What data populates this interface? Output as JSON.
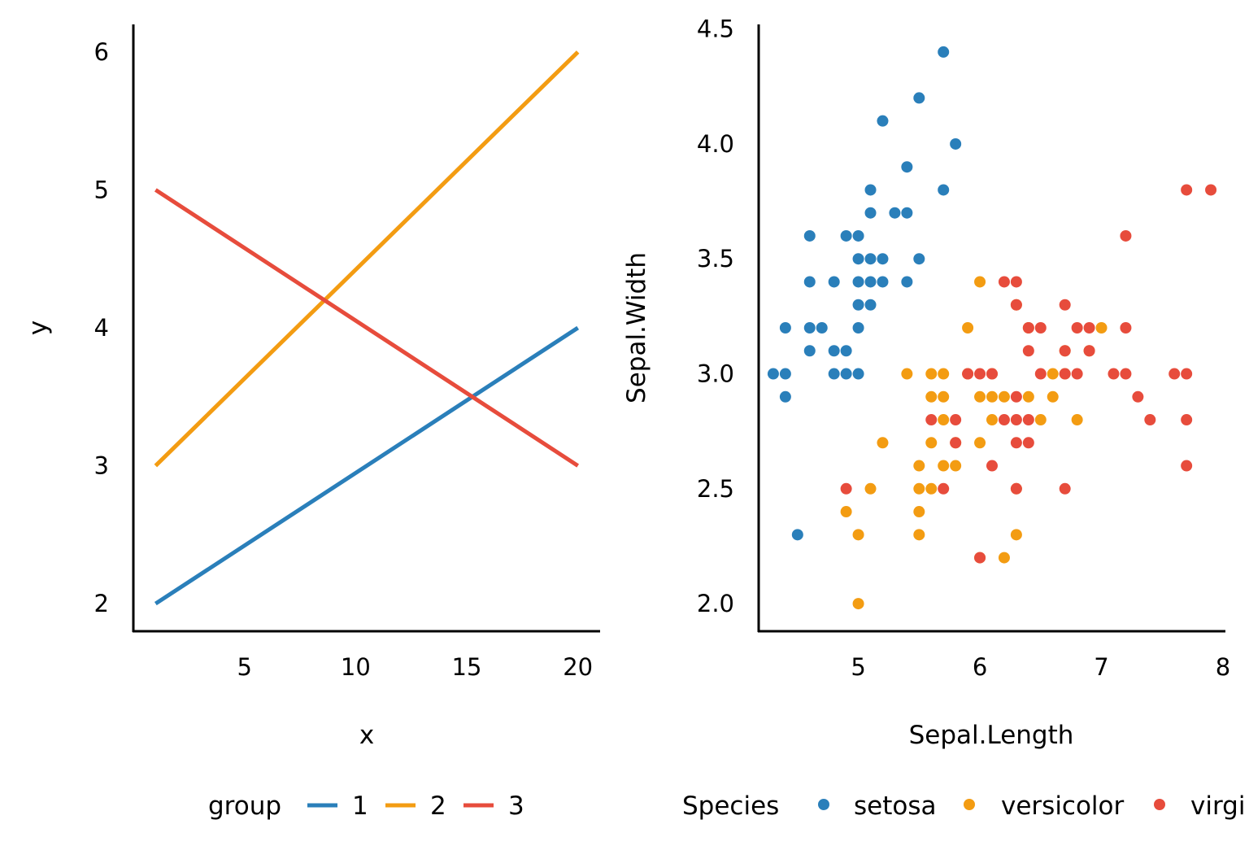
{
  "colors": {
    "blue": "#2a7fba",
    "orange": "#f39c12",
    "red": "#e74c3c",
    "axis": "#000000"
  },
  "chart_data": [
    {
      "type": "line",
      "xlabel": "x",
      "ylabel": "y",
      "xlim": [
        0,
        21
      ],
      "ylim": [
        1.8,
        6.2
      ],
      "xticks": [
        "5",
        "10",
        "15",
        "20"
      ],
      "yticks": [
        "2",
        "3",
        "4",
        "5",
        "6"
      ],
      "grid": false,
      "legend": {
        "title": "group",
        "placement": "bottom",
        "entries": [
          "1",
          "2",
          "3"
        ]
      },
      "series": [
        {
          "name": "1",
          "color": "#2a7fba",
          "x": [
            1,
            20
          ],
          "y": [
            2,
            4
          ]
        },
        {
          "name": "2",
          "color": "#f39c12",
          "x": [
            1,
            20
          ],
          "y": [
            3,
            6
          ]
        },
        {
          "name": "3",
          "color": "#e74c3c",
          "x": [
            1,
            20
          ],
          "y": [
            5,
            3
          ]
        }
      ]
    },
    {
      "type": "scatter",
      "xlabel": "Sepal.Length",
      "ylabel": "Sepal.Width",
      "xlim": [
        4.18,
        8.02
      ],
      "ylim": [
        1.88,
        4.52
      ],
      "xticks": [
        "5",
        "6",
        "7",
        "8"
      ],
      "yticks": [
        "2.0",
        "2.5",
        "3.0",
        "3.5",
        "4.0",
        "4.5"
      ],
      "grid": false,
      "legend": {
        "title": "Species",
        "placement": "bottom",
        "entries": [
          "setosa",
          "versicolor",
          "virgi"
        ]
      },
      "series": [
        {
          "name": "setosa",
          "color": "#2a7fba",
          "points": [
            [
              4.3,
              3.0
            ],
            [
              4.4,
              3.0
            ],
            [
              4.4,
              2.9
            ],
            [
              4.4,
              3.2
            ],
            [
              4.5,
              2.3
            ],
            [
              4.6,
              3.1
            ],
            [
              4.6,
              3.2
            ],
            [
              4.6,
              3.4
            ],
            [
              4.6,
              3.6
            ],
            [
              4.7,
              3.2
            ],
            [
              4.8,
              3.0
            ],
            [
              4.8,
              3.1
            ],
            [
              4.8,
              3.4
            ],
            [
              4.9,
              3.0
            ],
            [
              4.9,
              3.1
            ],
            [
              4.9,
              3.6
            ],
            [
              5.0,
              3.0
            ],
            [
              5.0,
              3.2
            ],
            [
              5.0,
              3.3
            ],
            [
              5.0,
              3.4
            ],
            [
              5.0,
              3.5
            ],
            [
              5.0,
              3.6
            ],
            [
              5.1,
              3.3
            ],
            [
              5.1,
              3.4
            ],
            [
              5.1,
              3.5
            ],
            [
              5.1,
              3.7
            ],
            [
              5.1,
              3.8
            ],
            [
              5.2,
              3.4
            ],
            [
              5.2,
              3.5
            ],
            [
              5.2,
              4.1
            ],
            [
              5.3,
              3.7
            ],
            [
              5.4,
              3.4
            ],
            [
              5.4,
              3.7
            ],
            [
              5.4,
              3.9
            ],
            [
              5.5,
              3.5
            ],
            [
              5.5,
              4.2
            ],
            [
              5.7,
              3.8
            ],
            [
              5.7,
              4.4
            ],
            [
              5.8,
              4.0
            ]
          ]
        },
        {
          "name": "versicolor",
          "color": "#f39c12",
          "points": [
            [
              4.9,
              2.4
            ],
            [
              5.0,
              2.0
            ],
            [
              5.0,
              2.3
            ],
            [
              5.1,
              2.5
            ],
            [
              5.2,
              2.7
            ],
            [
              5.4,
              3.0
            ],
            [
              5.5,
              2.3
            ],
            [
              5.5,
              2.4
            ],
            [
              5.5,
              2.5
            ],
            [
              5.5,
              2.6
            ],
            [
              5.6,
              2.5
            ],
            [
              5.6,
              2.7
            ],
            [
              5.6,
              2.9
            ],
            [
              5.6,
              3.0
            ],
            [
              5.7,
              2.6
            ],
            [
              5.7,
              2.8
            ],
            [
              5.7,
              2.9
            ],
            [
              5.7,
              3.0
            ],
            [
              5.8,
              2.6
            ],
            [
              5.8,
              2.7
            ],
            [
              5.9,
              3.0
            ],
            [
              5.9,
              3.2
            ],
            [
              6.0,
              2.2
            ],
            [
              6.0,
              2.7
            ],
            [
              6.0,
              2.9
            ],
            [
              6.0,
              3.4
            ],
            [
              6.1,
              2.8
            ],
            [
              6.1,
              2.9
            ],
            [
              6.1,
              3.0
            ],
            [
              6.2,
              2.2
            ],
            [
              6.2,
              2.9
            ],
            [
              6.3,
              2.3
            ],
            [
              6.3,
              2.5
            ],
            [
              6.3,
              3.3
            ],
            [
              6.4,
              2.9
            ],
            [
              6.4,
              3.2
            ],
            [
              6.5,
              2.8
            ],
            [
              6.6,
              2.9
            ],
            [
              6.6,
              3.0
            ],
            [
              6.7,
              3.0
            ],
            [
              6.7,
              3.1
            ],
            [
              6.8,
              2.8
            ],
            [
              6.9,
              3.1
            ],
            [
              7.0,
              3.2
            ]
          ]
        },
        {
          "name": "virginica",
          "color": "#e74c3c",
          "points": [
            [
              4.9,
              2.5
            ],
            [
              5.6,
              2.8
            ],
            [
              5.7,
              2.5
            ],
            [
              5.8,
              2.7
            ],
            [
              5.8,
              2.8
            ],
            [
              5.9,
              3.0
            ],
            [
              6.0,
              2.2
            ],
            [
              6.0,
              3.0
            ],
            [
              6.1,
              2.6
            ],
            [
              6.1,
              3.0
            ],
            [
              6.2,
              2.8
            ],
            [
              6.2,
              3.4
            ],
            [
              6.3,
              2.5
            ],
            [
              6.3,
              2.7
            ],
            [
              6.3,
              2.8
            ],
            [
              6.3,
              2.9
            ],
            [
              6.3,
              3.3
            ],
            [
              6.3,
              3.4
            ],
            [
              6.4,
              2.7
            ],
            [
              6.4,
              2.8
            ],
            [
              6.4,
              3.1
            ],
            [
              6.4,
              3.2
            ],
            [
              6.5,
              3.0
            ],
            [
              6.5,
              3.2
            ],
            [
              6.7,
              2.5
            ],
            [
              6.7,
              3.0
            ],
            [
              6.7,
              3.1
            ],
            [
              6.7,
              3.3
            ],
            [
              6.8,
              3.0
            ],
            [
              6.8,
              3.2
            ],
            [
              6.9,
              3.1
            ],
            [
              6.9,
              3.2
            ],
            [
              7.1,
              3.0
            ],
            [
              7.2,
              3.0
            ],
            [
              7.2,
              3.2
            ],
            [
              7.2,
              3.6
            ],
            [
              7.3,
              2.9
            ],
            [
              7.4,
              2.8
            ],
            [
              7.6,
              3.0
            ],
            [
              7.7,
              2.6
            ],
            [
              7.7,
              2.8
            ],
            [
              7.7,
              3.0
            ],
            [
              7.7,
              3.8
            ],
            [
              7.9,
              3.8
            ]
          ]
        }
      ]
    }
  ]
}
